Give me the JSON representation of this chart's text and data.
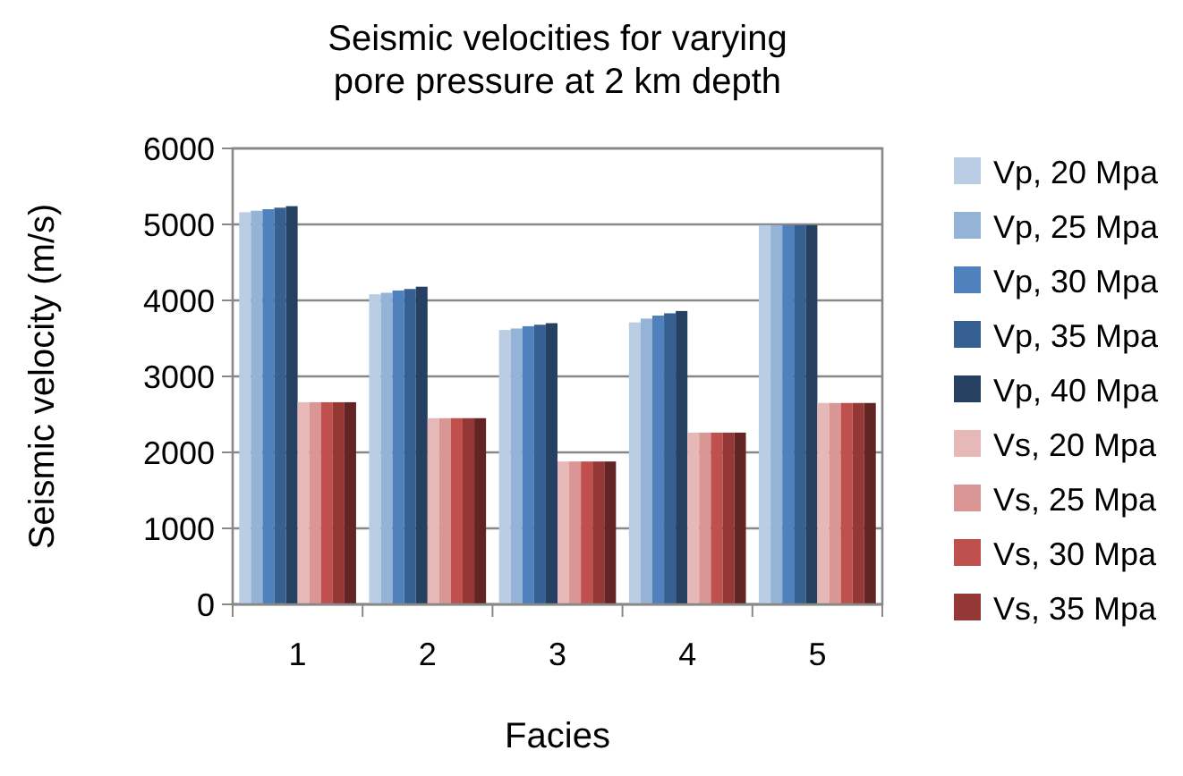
{
  "chart_data": {
    "type": "bar",
    "title": "Seismic velocities for varying pore pressure at 2 km depth",
    "xlabel": "Facies",
    "ylabel": "Seismic velocity (m/s)",
    "categories": [
      "1",
      "2",
      "3",
      "4",
      "5"
    ],
    "series": [
      {
        "name": "Vp, 20 Mpa",
        "color": "#b9cde5",
        "values": [
          5160,
          4080,
          3610,
          3710,
          4990
        ]
      },
      {
        "name": "Vp, 25 Mpa",
        "color": "#95b3d7",
        "values": [
          5180,
          4100,
          3630,
          3760,
          4990
        ]
      },
      {
        "name": "Vp, 30 Mpa",
        "color": "#4f81bd",
        "values": [
          5200,
          4130,
          3660,
          3800,
          4990
        ]
      },
      {
        "name": "Vp, 35 Mpa",
        "color": "#376092",
        "values": [
          5220,
          4150,
          3680,
          3830,
          4990
        ]
      },
      {
        "name": "Vp, 40 Mpa",
        "color": "#254061",
        "values": [
          5240,
          4180,
          3700,
          3860,
          4990
        ]
      },
      {
        "name": "Vs, 20 Mpa",
        "color": "#e6b9b8",
        "values": [
          2660,
          2450,
          1880,
          2260,
          2650
        ]
      },
      {
        "name": "Vs, 25 Mpa",
        "color": "#d99694",
        "values": [
          2660,
          2450,
          1880,
          2260,
          2650
        ]
      },
      {
        "name": "Vs, 30 Mpa",
        "color": "#c0504d",
        "values": [
          2660,
          2450,
          1880,
          2260,
          2650
        ]
      },
      {
        "name": "Vs, 35 Mpa",
        "color": "#953735",
        "values": [
          2660,
          2450,
          1880,
          2260,
          2650
        ]
      },
      {
        "color": "#632523",
        "values": [
          2660,
          2450,
          1880,
          2260,
          2650
        ]
      }
    ],
    "ylim": [
      0,
      6000
    ],
    "yticks": [
      0,
      1000,
      2000,
      3000,
      4000,
      5000,
      6000
    ],
    "grid": "y",
    "legend": "right"
  }
}
